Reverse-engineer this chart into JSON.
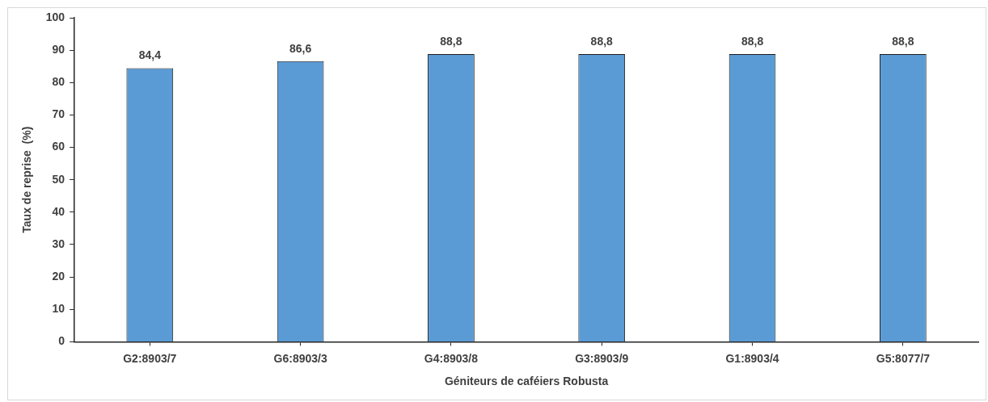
{
  "chart_data": {
    "type": "bar",
    "xlabel": "Géniteurs de caféiers Robusta",
    "ylabel": "Taux de reprise  (%)",
    "categories": [
      "G2:8903/7",
      "G6:8903/3",
      "G4:8903/8",
      "G3:8903/9",
      "G1:8903/4",
      "G5:8077/7"
    ],
    "values": [
      84.4,
      86.6,
      88.8,
      88.8,
      88.8,
      88.8
    ],
    "value_labels": [
      "84,4",
      "86,6",
      "88,8",
      "88,8",
      "88,8",
      "88,8"
    ],
    "color": "#5b9bd5",
    "ylim": [
      0,
      100
    ],
    "yticks": [
      0,
      10,
      20,
      30,
      40,
      50,
      60,
      70,
      80,
      90,
      100
    ]
  }
}
